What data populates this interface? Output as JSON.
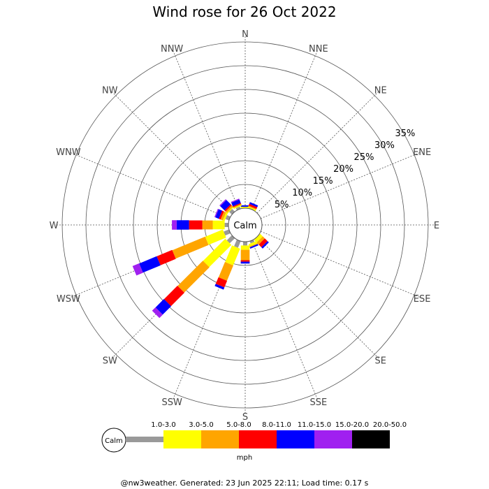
{
  "chart_data": {
    "type": "wind-rose",
    "title": "Wind rose for 26 Oct 2022",
    "directions": [
      "N",
      "NNE",
      "NE",
      "ENE",
      "E",
      "ESE",
      "SE",
      "SSE",
      "S",
      "SSW",
      "SW",
      "WSW",
      "W",
      "WNW",
      "NW",
      "NNW"
    ],
    "radial_ticks": [
      "5%",
      "10%",
      "15%",
      "20%",
      "25%",
      "30%",
      "35%"
    ],
    "radial_max": 35,
    "grid": true,
    "calm_label": "Calm",
    "unit": "mph",
    "bins": [
      {
        "label": "1.0-3.0",
        "color": "#999999"
      },
      {
        "label": "3.0-5.0",
        "color": "#ffff00"
      },
      {
        "label": "5.0-8.0",
        "color": "#ffa500"
      },
      {
        "label": "8.0-11.0",
        "color": "#ff0000"
      },
      {
        "label": "11.0-15.0",
        "color": "#0000ff"
      },
      {
        "label": "15.0-20.0",
        "color": "#a020f0"
      },
      {
        "label": "20.0-50.0",
        "color": "#000000"
      }
    ],
    "series": [
      {
        "dir": "N",
        "values": [
          0,
          0.3,
          0,
          0,
          0.3,
          0,
          0
        ]
      },
      {
        "dir": "NNE",
        "values": [
          0,
          0.3,
          0.2,
          0.4,
          0.4,
          0,
          0
        ]
      },
      {
        "dir": "NE",
        "values": [
          0,
          0,
          0,
          0,
          0,
          0,
          0
        ]
      },
      {
        "dir": "ENE",
        "values": [
          0,
          0,
          0,
          0,
          0,
          0,
          0
        ]
      },
      {
        "dir": "E",
        "values": [
          0,
          0,
          0,
          0,
          0,
          0,
          0
        ]
      },
      {
        "dir": "ESE",
        "values": [
          0,
          0,
          0,
          0,
          0,
          0,
          0
        ]
      },
      {
        "dir": "SE",
        "values": [
          0,
          0.8,
          0.6,
          0.8,
          0.4,
          0,
          0
        ]
      },
      {
        "dir": "SSE",
        "values": [
          0.5,
          0.5,
          0.2,
          0,
          0.3,
          0,
          0
        ]
      },
      {
        "dir": "S",
        "values": [
          0.8,
          0.9,
          2.2,
          0.3,
          0.4,
          0,
          0
        ]
      },
      {
        "dir": "SSW",
        "values": [
          1.5,
          3.8,
          3.5,
          1.5,
          0.5,
          0,
          0
        ]
      },
      {
        "dir": "SW",
        "values": [
          1.5,
          6.6,
          7.5,
          4.0,
          2.5,
          1.0,
          0
        ]
      },
      {
        "dir": "WSW",
        "values": [
          1.2,
          4.0,
          7.5,
          3.5,
          4.0,
          1.5,
          0
        ]
      },
      {
        "dir": "W",
        "values": [
          0.8,
          2.5,
          2.2,
          2.8,
          2.6,
          1.0,
          0
        ]
      },
      {
        "dir": "WNW",
        "values": [
          0.8,
          0.4,
          0.5,
          0.4,
          0.8,
          0.2,
          0
        ]
      },
      {
        "dir": "NW",
        "values": [
          0.8,
          0.2,
          0.4,
          0.3,
          1.3,
          0.2,
          0
        ]
      },
      {
        "dir": "NNW",
        "values": [
          0.5,
          0.2,
          0.2,
          0.2,
          0.8,
          0.2,
          0
        ]
      }
    ]
  },
  "footer": "@nw3weather. Generated: 23 Jun 2025 22:11; Load time: 0.17 s"
}
